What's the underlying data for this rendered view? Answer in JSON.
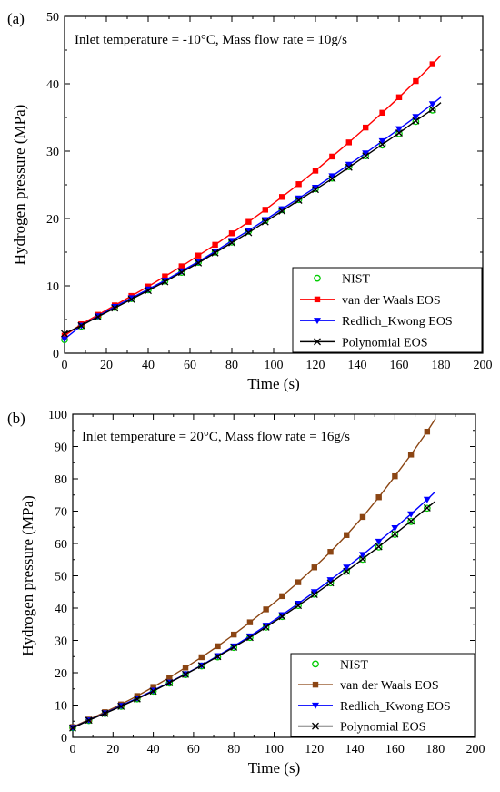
{
  "chart_data": [
    {
      "type": "line",
      "panel_label": "(a)",
      "annotation": "Inlet temperature = -10°C, Mass flow rate = 10g/s",
      "xlabel": "Time (s)",
      "ylabel": "Hydrogen pressure (MPa)",
      "xlim": [
        0,
        200
      ],
      "ylim": [
        0,
        50
      ],
      "xticks": [
        "0",
        "20",
        "40",
        "60",
        "80",
        "100",
        "120",
        "140",
        "160",
        "180",
        "200"
      ],
      "yticks": [
        "0",
        "10",
        "20",
        "30",
        "40",
        "50"
      ],
      "legend_position": "bottom-right",
      "grid": false,
      "series": [
        {
          "name": "NIST",
          "color": "#00cc00",
          "marker": "open-circle",
          "x": [
            0,
            8,
            16,
            24,
            32,
            40,
            48,
            56,
            64,
            72,
            80,
            88,
            96,
            104,
            112,
            120,
            128,
            136,
            144,
            152,
            160,
            168,
            176
          ],
          "y": [
            2.0,
            4.0,
            5.4,
            6.8,
            8.1,
            9.4,
            10.7,
            12.0,
            13.5,
            15.0,
            16.5,
            18.1,
            19.7,
            21.3,
            22.8,
            24.4,
            26.0,
            27.7,
            29.3,
            30.9,
            32.6,
            34.4,
            36.1
          ]
        },
        {
          "name": "van der Waals EOS",
          "color": "#ff0000",
          "marker": "filled-square",
          "x": [
            0,
            8,
            16,
            24,
            32,
            40,
            48,
            56,
            64,
            72,
            80,
            88,
            96,
            104,
            112,
            120,
            128,
            136,
            144,
            152,
            160,
            168,
            176
          ],
          "y": [
            2.6,
            4.3,
            5.7,
            7.1,
            8.5,
            9.9,
            11.4,
            12.9,
            14.5,
            16.1,
            17.8,
            19.5,
            21.3,
            23.2,
            25.1,
            27.1,
            29.2,
            31.3,
            33.5,
            35.7,
            38.0,
            40.4,
            42.9
          ],
          "line_end": [
            180,
            44.2
          ]
        },
        {
          "name": "Redlich_Kwong EOS",
          "color": "#0000ff",
          "marker": "filled-triangle-down",
          "x": [
            0,
            8,
            16,
            24,
            32,
            40,
            48,
            56,
            64,
            72,
            80,
            88,
            96,
            104,
            112,
            120,
            128,
            136,
            144,
            152,
            160,
            168,
            176
          ],
          "y": [
            2.1,
            4.1,
            5.5,
            6.9,
            8.2,
            9.5,
            10.8,
            12.2,
            13.6,
            15.1,
            16.7,
            18.2,
            19.8,
            21.4,
            23.0,
            24.6,
            26.3,
            28.0,
            29.7,
            31.5,
            33.3,
            35.1,
            37.0
          ],
          "line_end": [
            180,
            38.0
          ]
        },
        {
          "name": "Polynomial EOS",
          "color": "#000000",
          "marker": "x",
          "x": [
            0,
            8,
            16,
            24,
            32,
            40,
            48,
            56,
            64,
            72,
            80,
            88,
            96,
            104,
            112,
            120,
            128,
            136,
            144,
            152,
            160,
            168,
            176
          ],
          "y": [
            2.9,
            4.1,
            5.4,
            6.7,
            8.0,
            9.3,
            10.6,
            12.0,
            13.4,
            14.9,
            16.4,
            17.9,
            19.5,
            21.1,
            22.7,
            24.3,
            25.9,
            27.6,
            29.3,
            31.0,
            32.7,
            34.5,
            36.2
          ],
          "line_end": [
            180,
            37.2
          ]
        }
      ]
    },
    {
      "type": "line",
      "panel_label": "(b)",
      "annotation": "Inlet temperature = 20°C, Mass flow rate = 16g/s",
      "xlabel": "Time (s)",
      "ylabel": "Hydrogen pressure (MPa)",
      "xlim": [
        0,
        200
      ],
      "ylim": [
        0,
        100
      ],
      "xticks": [
        "0",
        "20",
        "40",
        "60",
        "80",
        "100",
        "120",
        "140",
        "160",
        "180",
        "200"
      ],
      "yticks": [
        "0",
        "10",
        "20",
        "30",
        "40",
        "50",
        "60",
        "70",
        "80",
        "90",
        "100"
      ],
      "legend_position": "bottom-right",
      "grid": false,
      "series": [
        {
          "name": "NIST",
          "color": "#00cc00",
          "marker": "open-circle",
          "x": [
            0,
            8,
            16,
            24,
            32,
            40,
            48,
            56,
            64,
            72,
            80,
            88,
            96,
            104,
            112,
            120,
            128,
            136,
            144,
            152,
            160,
            168,
            176
          ],
          "y": [
            3.0,
            5.2,
            7.4,
            9.6,
            11.9,
            14.3,
            16.8,
            19.4,
            22.1,
            24.9,
            27.8,
            30.9,
            34.1,
            37.4,
            40.8,
            44.3,
            47.8,
            51.4,
            55.1,
            58.9,
            62.8,
            66.8,
            70.9
          ]
        },
        {
          "name": "van der Waals EOS",
          "color": "#8b4513",
          "marker": "filled-square",
          "x": [
            0,
            8,
            16,
            24,
            32,
            40,
            48,
            56,
            64,
            72,
            80,
            88,
            96,
            104,
            112,
            120,
            128,
            136,
            144,
            152,
            160,
            168,
            176
          ],
          "y": [
            3.2,
            5.5,
            7.8,
            10.2,
            12.8,
            15.6,
            18.5,
            21.6,
            24.8,
            28.2,
            31.8,
            35.6,
            39.6,
            43.7,
            48.0,
            52.6,
            57.4,
            62.6,
            68.2,
            74.3,
            80.8,
            87.5,
            94.6
          ],
          "line_end": [
            180,
            98.5
          ]
        },
        {
          "name": "Redlich_Kwong EOS",
          "color": "#0000ff",
          "marker": "filled-triangle-down",
          "x": [
            0,
            8,
            16,
            24,
            32,
            40,
            48,
            56,
            64,
            72,
            80,
            88,
            96,
            104,
            112,
            120,
            128,
            136,
            144,
            152,
            160,
            168,
            176
          ],
          "y": [
            3.0,
            5.3,
            7.5,
            9.8,
            12.1,
            14.5,
            17.0,
            19.6,
            22.3,
            25.2,
            28.2,
            31.3,
            34.6,
            37.9,
            41.4,
            45.0,
            48.7,
            52.6,
            56.5,
            60.6,
            64.8,
            69.1,
            73.6
          ],
          "line_end": [
            180,
            76.0
          ]
        },
        {
          "name": "Polynomial EOS",
          "color": "#000000",
          "marker": "x",
          "x": [
            0,
            8,
            16,
            24,
            32,
            40,
            48,
            56,
            64,
            72,
            80,
            88,
            96,
            104,
            112,
            120,
            128,
            136,
            144,
            152,
            160,
            168,
            176
          ],
          "y": [
            2.9,
            5.3,
            7.4,
            9.6,
            11.9,
            14.3,
            16.9,
            19.5,
            22.2,
            25.0,
            27.9,
            30.9,
            34.1,
            37.4,
            40.8,
            44.2,
            47.8,
            51.4,
            55.2,
            59.0,
            62.9,
            66.9,
            71.0
          ],
          "line_end": [
            180,
            73.0
          ]
        }
      ]
    }
  ]
}
